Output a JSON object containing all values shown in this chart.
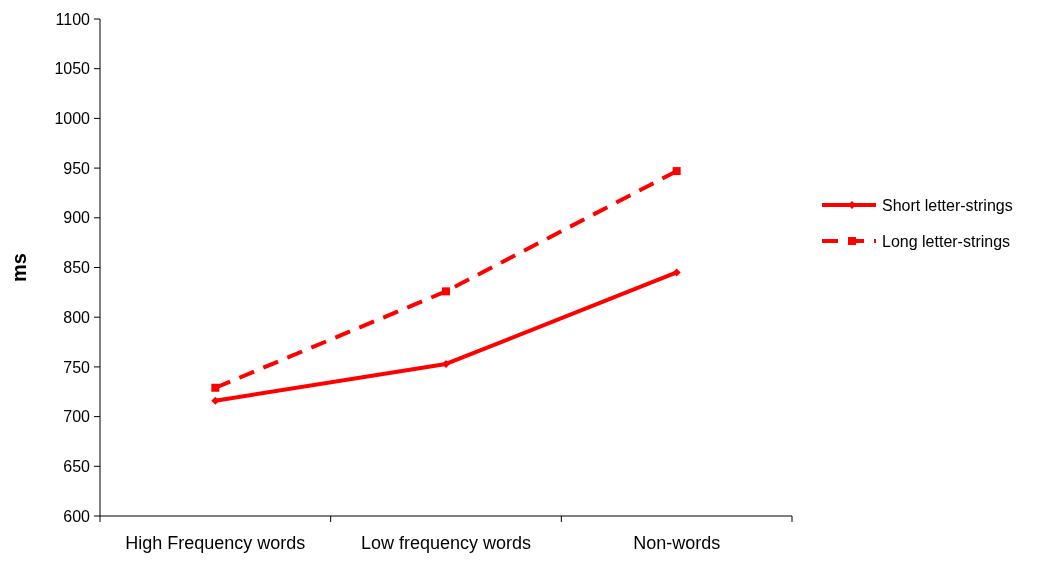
{
  "chart_data": {
    "type": "line",
    "ylabel": "ms",
    "categories": [
      "High Frequency words",
      "Low frequency words",
      "Non-words"
    ],
    "series": [
      {
        "name": "Short letter-strings",
        "color": "#ff0000",
        "values": [
          716,
          753,
          845
        ],
        "marker": "diamond",
        "line_style": "solid"
      },
      {
        "name": "Long letter-strings",
        "color": "#ff0000",
        "values": [
          729,
          826,
          947
        ],
        "marker": "square",
        "line_style": "dashed"
      }
    ],
    "ylim": [
      600,
      1100
    ],
    "yticks": [
      600,
      650,
      700,
      750,
      800,
      850,
      900,
      950,
      1000,
      1050,
      1100
    ],
    "grid": false,
    "legend": "right"
  }
}
